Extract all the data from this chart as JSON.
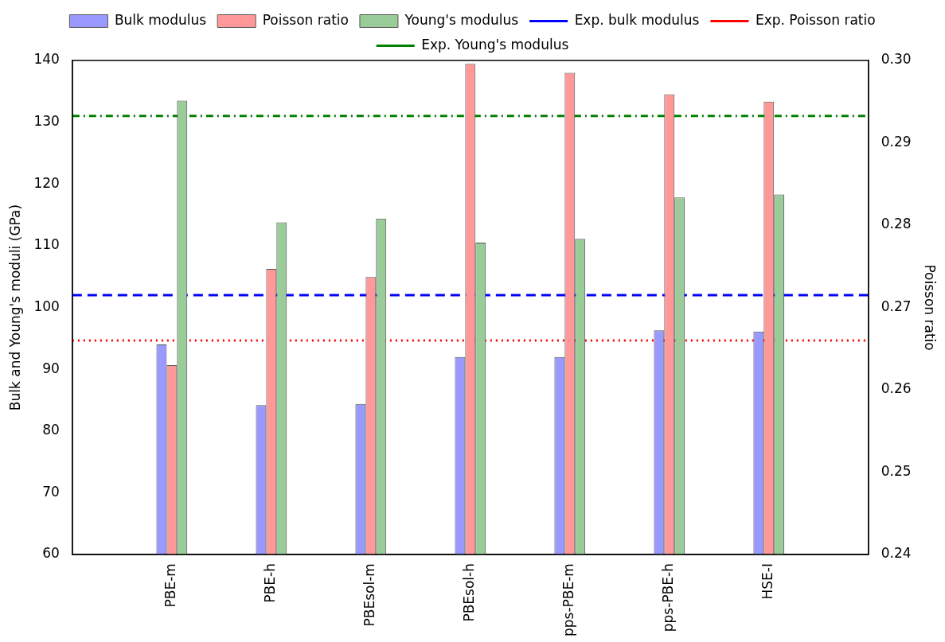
{
  "chart_data": {
    "type": "bar",
    "categories": [
      "PBE-m",
      "PBE-h",
      "PBEsol-m",
      "PBEsol-h",
      "pps-PBE-m",
      "pps-PBE-h",
      "HSE-I"
    ],
    "series": [
      {
        "name": "Bulk modulus",
        "color": "#9999ff",
        "values": [
          94.0,
          84.2,
          84.4,
          92.0,
          92.0,
          96.3,
          96.1
        ]
      },
      {
        "name": "Poisson ratio",
        "color": "#ff9999",
        "axis": "y2",
        "values": [
          0.263,
          0.2747,
          0.2737,
          0.2996,
          0.2985,
          0.2959,
          0.295
        ]
      },
      {
        "name": "Young's modulus",
        "color": "#99cc99",
        "values": [
          133.5,
          113.8,
          114.4,
          110.5,
          111.1,
          117.8,
          118.3
        ]
      }
    ],
    "ref_lines": [
      {
        "axis": "y",
        "value": 102,
        "label": "Exp. bulk modulus",
        "color": "#0000ff",
        "line_style": "dashed"
      },
      {
        "axis": "y2",
        "value": 0.266,
        "label": "Exp. Poisson ratio",
        "color": "#ff0000",
        "line_style": "dotted"
      },
      {
        "axis": "y",
        "value": 131,
        "label": "Exp. Young's modulus",
        "color": "#008000",
        "line_style": "dashdot"
      }
    ],
    "ylabel": "Bulk and Young's moduli (GPa)",
    "y2label": "Poisson ratio",
    "ylim": [
      60,
      140
    ],
    "yticks": [
      60,
      70,
      80,
      90,
      100,
      110,
      120,
      130,
      140
    ],
    "y2lim": [
      0.24,
      0.3
    ],
    "y2ticks": [
      0.24,
      0.25,
      0.26,
      0.27,
      0.28,
      0.29,
      {
        "value": 0.3,
        "label": "0.30"
      }
    ],
    "grid": false,
    "legend": "top"
  }
}
